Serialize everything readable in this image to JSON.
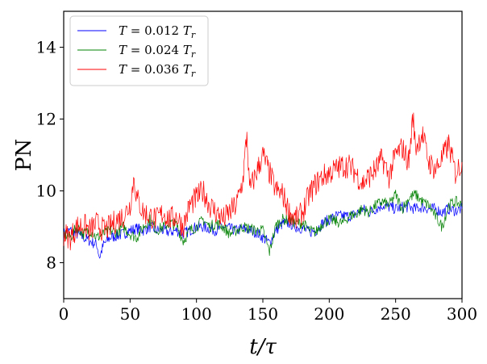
{
  "chart_data": {
    "type": "line",
    "xlabel": "t/τ",
    "ylabel": "PN",
    "xlim": [
      0,
      300
    ],
    "ylim": [
      7,
      15
    ],
    "x_ticks": [
      0,
      50,
      100,
      150,
      200,
      250,
      300
    ],
    "y_ticks": [
      8,
      10,
      12,
      14
    ],
    "grid": false,
    "legend_position": "top-left",
    "series": [
      {
        "name": "T = 0.012 T_r",
        "color": "#0000ff",
        "x": [
          0,
          5,
          10,
          15,
          20,
          25,
          27,
          30,
          35,
          40,
          45,
          50,
          55,
          60,
          65,
          70,
          75,
          80,
          85,
          90,
          95,
          100,
          105,
          110,
          115,
          120,
          125,
          130,
          135,
          140,
          145,
          150,
          155,
          160,
          165,
          170,
          175,
          180,
          185,
          190,
          195,
          200,
          205,
          210,
          215,
          220,
          225,
          230,
          235,
          240,
          245,
          250,
          255,
          260,
          265,
          270,
          275,
          280,
          285,
          290,
          295,
          300
        ],
        "values": [
          8.8,
          8.9,
          8.8,
          8.7,
          8.6,
          8.5,
          8.15,
          8.5,
          8.7,
          8.75,
          8.8,
          8.9,
          8.95,
          8.9,
          9.0,
          8.9,
          8.9,
          8.85,
          8.9,
          8.8,
          8.9,
          9.0,
          9.0,
          8.95,
          8.9,
          9.0,
          8.95,
          8.9,
          8.95,
          8.9,
          8.85,
          8.7,
          8.55,
          8.9,
          9.1,
          9.1,
          9.0,
          8.95,
          8.85,
          8.9,
          9.1,
          9.2,
          9.3,
          9.3,
          9.3,
          9.35,
          9.5,
          9.4,
          9.5,
          9.6,
          9.55,
          9.5,
          9.55,
          9.55,
          9.5,
          9.55,
          9.5,
          9.5,
          9.4,
          9.5,
          9.45,
          9.5
        ]
      },
      {
        "name": "T = 0.024 T_r",
        "color": "#008000",
        "x": [
          0,
          5,
          10,
          15,
          20,
          25,
          30,
          35,
          40,
          45,
          50,
          55,
          60,
          65,
          70,
          75,
          80,
          85,
          90,
          95,
          100,
          105,
          110,
          115,
          120,
          125,
          130,
          135,
          140,
          145,
          150,
          155,
          160,
          165,
          170,
          175,
          180,
          185,
          190,
          195,
          200,
          205,
          210,
          215,
          220,
          225,
          230,
          235,
          240,
          245,
          250,
          255,
          260,
          265,
          270,
          275,
          280,
          285,
          290,
          295,
          300
        ],
        "values": [
          8.8,
          8.7,
          9.0,
          8.8,
          8.9,
          8.7,
          8.8,
          8.9,
          8.85,
          9.0,
          8.8,
          8.7,
          9.0,
          9.2,
          8.9,
          9.0,
          9.1,
          9.05,
          8.6,
          8.9,
          9.0,
          9.2,
          9.0,
          9.1,
          9.0,
          8.8,
          8.9,
          9.0,
          8.95,
          8.9,
          8.9,
          8.3,
          9.05,
          9.2,
          9.2,
          9.1,
          9.1,
          8.9,
          8.85,
          9.1,
          9.2,
          9.15,
          9.1,
          9.3,
          9.35,
          9.5,
          9.4,
          9.6,
          9.7,
          9.6,
          9.9,
          9.5,
          9.8,
          9.9,
          9.7,
          9.6,
          9.3,
          9.0,
          9.6,
          9.7,
          9.6
        ]
      },
      {
        "name": "T = 0.036 T_r",
        "color": "#ff0000",
        "x": [
          0,
          5,
          10,
          15,
          20,
          25,
          30,
          35,
          40,
          45,
          50,
          53,
          55,
          60,
          65,
          70,
          75,
          80,
          85,
          90,
          95,
          100,
          105,
          110,
          115,
          120,
          125,
          130,
          135,
          138,
          140,
          145,
          150,
          155,
          160,
          165,
          170,
          175,
          180,
          185,
          190,
          195,
          200,
          205,
          210,
          215,
          220,
          225,
          230,
          235,
          240,
          245,
          250,
          255,
          260,
          263,
          265,
          270,
          275,
          280,
          285,
          290,
          295,
          300
        ],
        "values": [
          8.8,
          8.7,
          9.0,
          9.05,
          8.9,
          9.1,
          8.9,
          9.0,
          9.2,
          9.3,
          9.6,
          10.4,
          9.8,
          9.4,
          9.3,
          9.2,
          9.4,
          9.2,
          9.3,
          9.0,
          9.6,
          9.8,
          10.0,
          9.6,
          9.4,
          9.2,
          9.4,
          9.6,
          10.3,
          11.6,
          10.0,
          10.5,
          11.0,
          10.5,
          10.0,
          9.9,
          9.4,
          9.2,
          9.4,
          9.9,
          10.2,
          10.4,
          10.5,
          10.6,
          10.7,
          10.7,
          10.5,
          10.2,
          10.4,
          10.6,
          10.9,
          10.4,
          11.0,
          11.2,
          10.8,
          12.1,
          11.2,
          11.6,
          10.8,
          10.6,
          10.9,
          11.3,
          10.5,
          10.8
        ]
      }
    ]
  },
  "legend": {
    "entries": [
      {
        "prefix": "T",
        "value": "0.012",
        "suffix": "T",
        "sub": "r"
      },
      {
        "prefix": "T",
        "value": "0.024",
        "suffix": "T",
        "sub": "r"
      },
      {
        "prefix": "T",
        "value": "0.036",
        "suffix": "T",
        "sub": "r"
      }
    ]
  }
}
